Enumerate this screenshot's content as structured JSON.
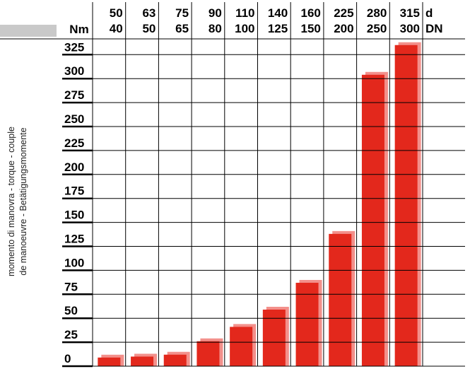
{
  "chart_data": {
    "type": "bar",
    "ylabel_lines": [
      "momento di manovra - torque - couple",
      "de manoeuvre - Betätigungsmomente"
    ],
    "y_unit": "Nm",
    "row_labels": [
      "d",
      "DN"
    ],
    "categories_d": [
      "50",
      "63",
      "75",
      "90",
      "110",
      "140",
      "160",
      "225",
      "280",
      "315"
    ],
    "categories_dn": [
      "40",
      "50",
      "65",
      "80",
      "100",
      "125",
      "150",
      "200",
      "250",
      "300"
    ],
    "values": [
      9,
      10,
      12,
      26,
      41,
      59,
      87,
      138,
      304,
      335
    ],
    "yticks": [
      "325",
      "300",
      "275",
      "250",
      "225",
      "200",
      "175",
      "150",
      "125",
      "100",
      "75",
      "50",
      "25",
      "0"
    ],
    "ylim": [
      0,
      335
    ],
    "grid": true,
    "colors": {
      "bar": "#e3281c",
      "bar_shadow": "#f3908b",
      "header_band": "#c9c9c9"
    }
  }
}
